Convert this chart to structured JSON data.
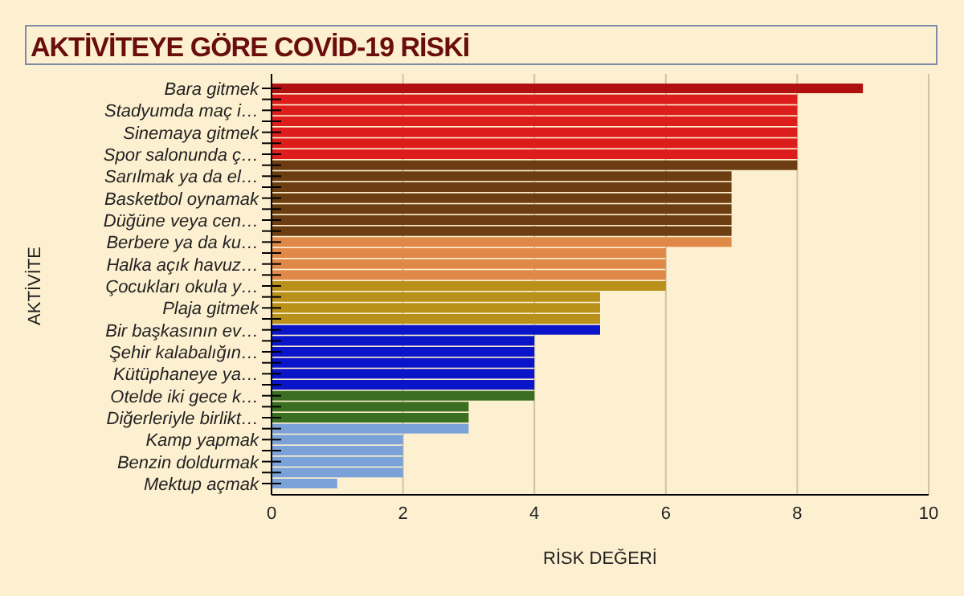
{
  "chart_data": {
    "type": "bar",
    "orientation": "horizontal",
    "title": "AKTİVİTEYE GÖRE COVİD-19 RİSKİ",
    "xlabel": "RİSK DEĞERİ",
    "ylabel": "AKTİVİTE",
    "categories": [
      "Bara gitmek",
      null,
      "Stadyumda maç i…",
      null,
      "Sinemaya gitmek",
      null,
      "Spor salonunda ç…",
      null,
      "Sarılmak ya da el…",
      null,
      "Basketbol oynamak",
      null,
      "Düğüne veya cen…",
      null,
      "Berbere ya da ku…",
      null,
      "Halka açık havuz…",
      null,
      "Çocukları okula y…",
      null,
      "Plaja gitmek",
      null,
      "Bir başkasının ev…",
      null,
      "Şehir kalabalığın…",
      null,
      "Kütüphaneye ya…",
      null,
      "Otelde iki gece k…",
      null,
      "Diğerleriyle birlikt…",
      null,
      "Kamp yapmak",
      null,
      "Benzin doldurmak",
      null,
      "Mektup açmak"
    ],
    "values": [
      9,
      8,
      8,
      8,
      8,
      8,
      8,
      8,
      7,
      7,
      7,
      7,
      7,
      7,
      7,
      6,
      6,
      6,
      6,
      5,
      5,
      5,
      5,
      4,
      4,
      4,
      4,
      4,
      4,
      3,
      3,
      3,
      2,
      2,
      2,
      2,
      1
    ],
    "colors": [
      "#b01010",
      "#dd1c1c",
      "#dd1c1c",
      "#dd1c1c",
      "#dd1c1c",
      "#dd1c1c",
      "#dd1c1c",
      "#6b3d10",
      "#6b3d10",
      "#6b3d10",
      "#6b3d10",
      "#6b3d10",
      "#6b3d10",
      "#6b3d10",
      "#e08848",
      "#e08848",
      "#e08848",
      "#e08848",
      "#b8901a",
      "#b8901a",
      "#b8901a",
      "#b8901a",
      "#0a14c8",
      "#0a14c8",
      "#0a14c8",
      "#0a14c8",
      "#0a14c8",
      "#0a14c8",
      "#3a6e20",
      "#3a6e20",
      "#3a6e20",
      "#7aa2d8",
      "#7aa2d8",
      "#7aa2d8",
      "#7aa2d8",
      "#7aa2d8",
      "#7aa2d8"
    ],
    "xlim": [
      0,
      10
    ],
    "xticks": [
      0,
      2,
      4,
      6,
      8,
      10
    ],
    "grid": "x"
  }
}
